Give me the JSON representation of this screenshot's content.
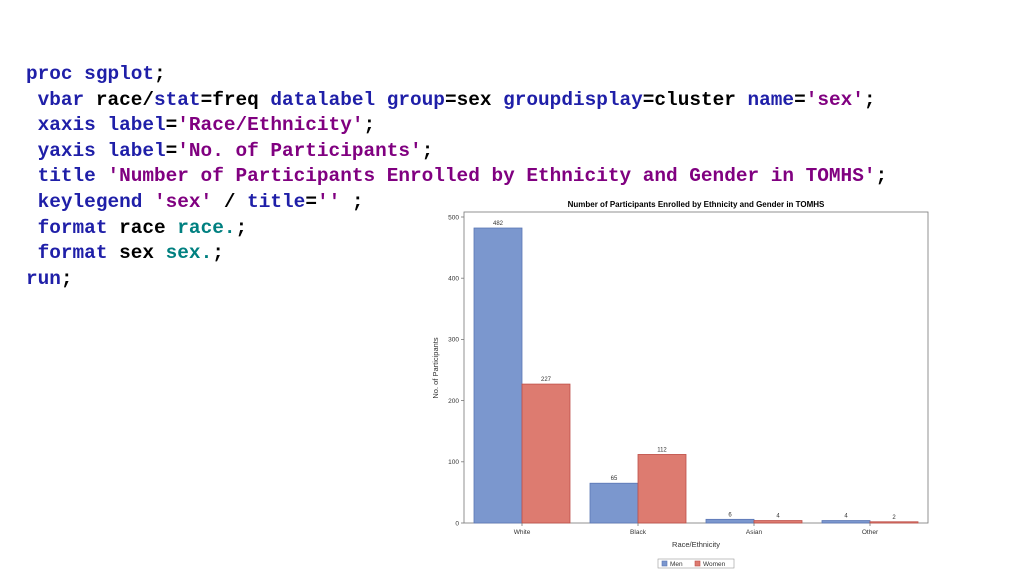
{
  "code": {
    "lines": [
      [
        {
          "t": "proc sgplot",
          "c": "kw"
        },
        {
          "t": ";",
          "c": "plain"
        }
      ],
      [
        {
          "t": " vbar",
          "c": "kw"
        },
        {
          "t": " race/",
          "c": "plain"
        },
        {
          "t": "stat",
          "c": "kw"
        },
        {
          "t": "=freq ",
          "c": "plain"
        },
        {
          "t": "datalabel",
          "c": "kw"
        },
        {
          "t": " ",
          "c": "plain"
        },
        {
          "t": "group",
          "c": "kw"
        },
        {
          "t": "=sex ",
          "c": "plain"
        },
        {
          "t": "groupdisplay",
          "c": "kw"
        },
        {
          "t": "=cluster ",
          "c": "plain"
        },
        {
          "t": "name",
          "c": "kw"
        },
        {
          "t": "=",
          "c": "plain"
        },
        {
          "t": "'sex'",
          "c": "str"
        },
        {
          "t": ";",
          "c": "plain"
        }
      ],
      [
        {
          "t": " xaxis label",
          "c": "kw"
        },
        {
          "t": "=",
          "c": "plain"
        },
        {
          "t": "'Race/Ethnicity'",
          "c": "str"
        },
        {
          "t": ";",
          "c": "plain"
        }
      ],
      [
        {
          "t": " yaxis label",
          "c": "kw"
        },
        {
          "t": "=",
          "c": "plain"
        },
        {
          "t": "'No. of Participants'",
          "c": "str"
        },
        {
          "t": ";",
          "c": "plain"
        }
      ],
      [
        {
          "t": " title",
          "c": "kw"
        },
        {
          "t": " ",
          "c": "plain"
        },
        {
          "t": "'Number of Participants Enrolled by Ethnicity and Gender in TOMHS'",
          "c": "str"
        },
        {
          "t": ";",
          "c": "plain"
        }
      ],
      [
        {
          "t": " keylegend",
          "c": "kw"
        },
        {
          "t": " ",
          "c": "plain"
        },
        {
          "t": "'sex'",
          "c": "str"
        },
        {
          "t": " / ",
          "c": "plain"
        },
        {
          "t": "title",
          "c": "kw"
        },
        {
          "t": "=",
          "c": "plain"
        },
        {
          "t": "''",
          "c": "str"
        },
        {
          "t": " ;",
          "c": "plain"
        }
      ],
      [
        {
          "t": " format",
          "c": "kw"
        },
        {
          "t": " race ",
          "c": "plain"
        },
        {
          "t": "race.",
          "c": "fmt"
        },
        {
          "t": ";",
          "c": "plain"
        }
      ],
      [
        {
          "t": " format",
          "c": "kw"
        },
        {
          "t": " sex ",
          "c": "plain"
        },
        {
          "t": "sex.",
          "c": "fmt"
        },
        {
          "t": ";",
          "c": "plain"
        }
      ],
      [
        {
          "t": "run",
          "c": "kw"
        },
        {
          "t": ";",
          "c": "plain"
        }
      ]
    ]
  },
  "colors": {
    "men": "#7b97ce",
    "men_edge": "#5a76b4",
    "women": "#dd7b70",
    "women_edge": "#bf4f48"
  },
  "chart_data": {
    "type": "bar",
    "title": "Number of Participants Enrolled by Ethnicity and Gender in TOMHS",
    "xlabel": "Race/Ethnicity",
    "ylabel": "No. of Participants",
    "categories": [
      "White",
      "Black",
      "Asian",
      "Other"
    ],
    "series": [
      {
        "name": "Men",
        "values": [
          482,
          65,
          6,
          4
        ]
      },
      {
        "name": "Women",
        "values": [
          227,
          112,
          4,
          2
        ]
      }
    ],
    "ylim": [
      0,
      500
    ],
    "yticks": [
      0,
      100,
      200,
      300,
      400,
      500
    ],
    "grid": false,
    "legend": "bottom"
  }
}
